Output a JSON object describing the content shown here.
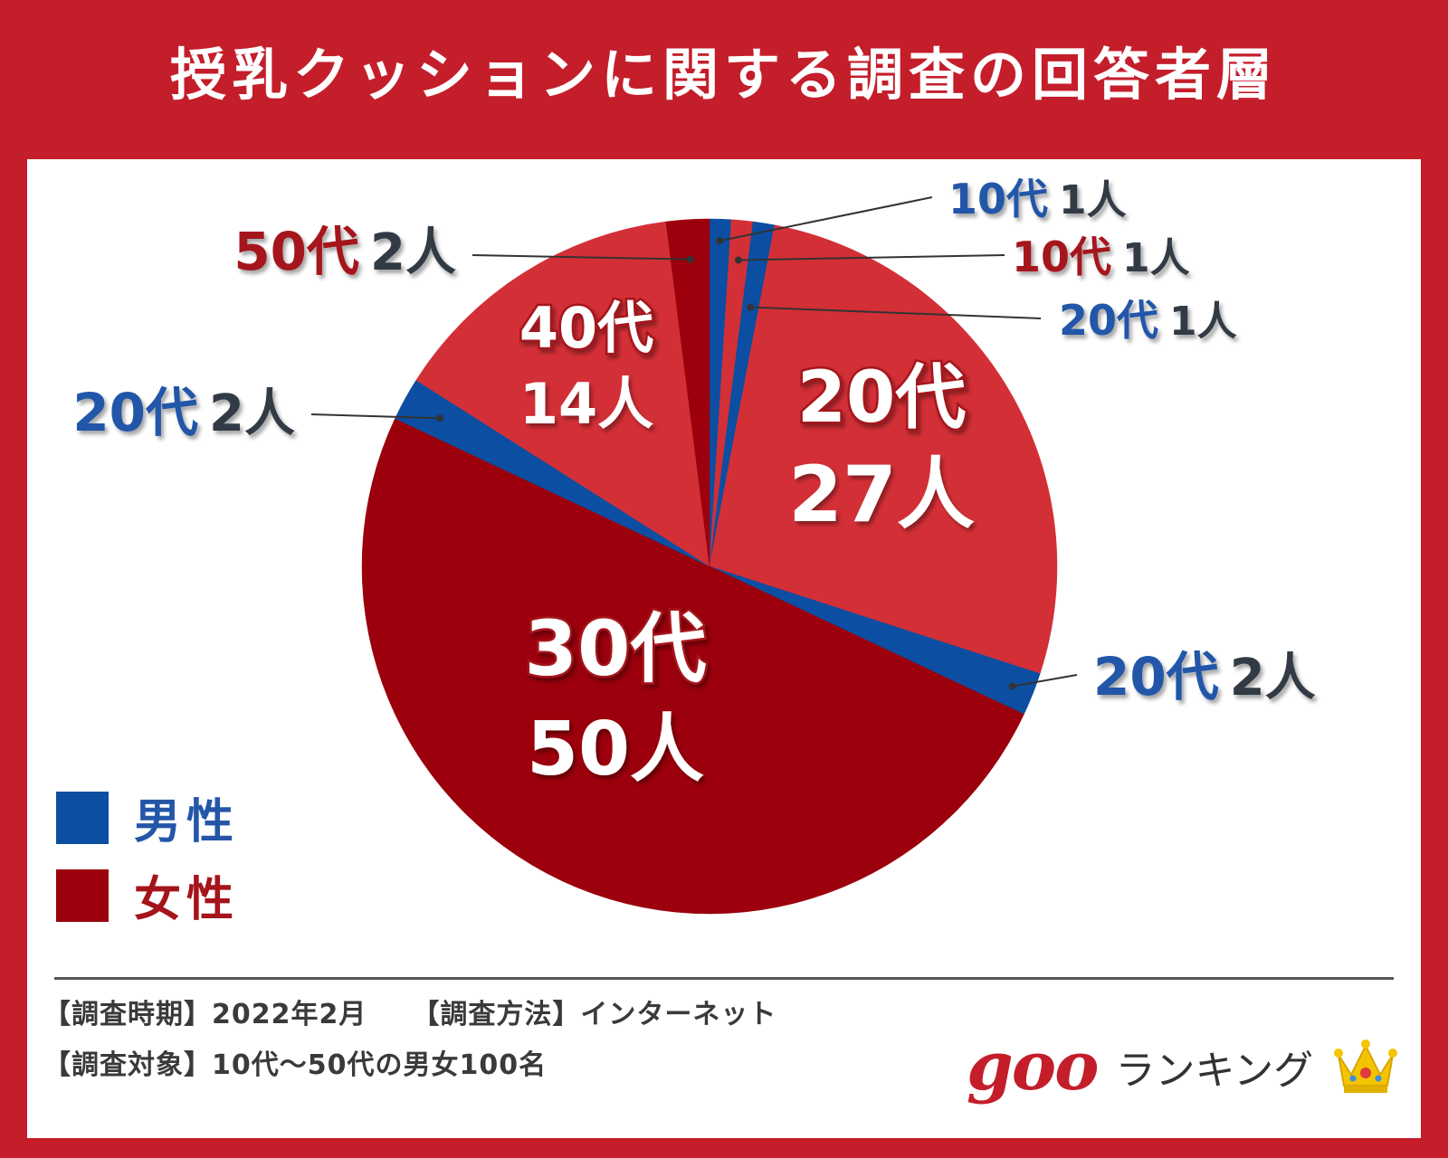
{
  "title": "授乳クッションに関する調査の回答者層",
  "colors": {
    "background": "#c41e2b",
    "male": "#0b4ea2",
    "female_light": "#d32f36",
    "female_dark": "#9b000c",
    "male_text": "#2456a8",
    "female_text": "#a5141b",
    "count_text": "#333b45"
  },
  "chart_data": {
    "type": "pie",
    "unit": "人",
    "total": 100,
    "slices": [
      {
        "gender": "male",
        "age": "10代",
        "count": 1,
        "count_label": "1人",
        "color": "#0b4ea2"
      },
      {
        "gender": "female",
        "age": "10代",
        "count": 1,
        "count_label": "1人",
        "color": "#d32f36"
      },
      {
        "gender": "male",
        "age": "20代",
        "count": 1,
        "count_label": "1人",
        "color": "#0b4ea2"
      },
      {
        "gender": "female",
        "age": "20代",
        "count": 27,
        "count_label": "27人",
        "color": "#d32f36"
      },
      {
        "gender": "male",
        "age": "20代",
        "count": 2,
        "count_label": "2人",
        "color": "#0b4ea2"
      },
      {
        "gender": "female",
        "age": "30代",
        "count": 50,
        "count_label": "50人",
        "color": "#9b000c"
      },
      {
        "gender": "male",
        "age": "20代",
        "count": 2,
        "count_label": "2人",
        "color": "#0b4ea2"
      },
      {
        "gender": "female",
        "age": "40代",
        "count": 14,
        "count_label": "14人",
        "color": "#d32f36"
      },
      {
        "gender": "female",
        "age": "50代",
        "count": 2,
        "count_label": "2人",
        "color": "#9b000c"
      }
    ],
    "legend": [
      {
        "label": "男性",
        "color": "#0b4ea2"
      },
      {
        "label": "女性",
        "color": "#9b000c"
      }
    ],
    "legend_placement": "bottom-left"
  },
  "footer": {
    "period": "【調査時期】2022年2月",
    "method": "【調査方法】インターネット",
    "target": "【調査対象】10代〜50代の男女100名"
  },
  "brand": {
    "logo": "goo",
    "name": "ランキング",
    "icon": "crown-icon"
  }
}
